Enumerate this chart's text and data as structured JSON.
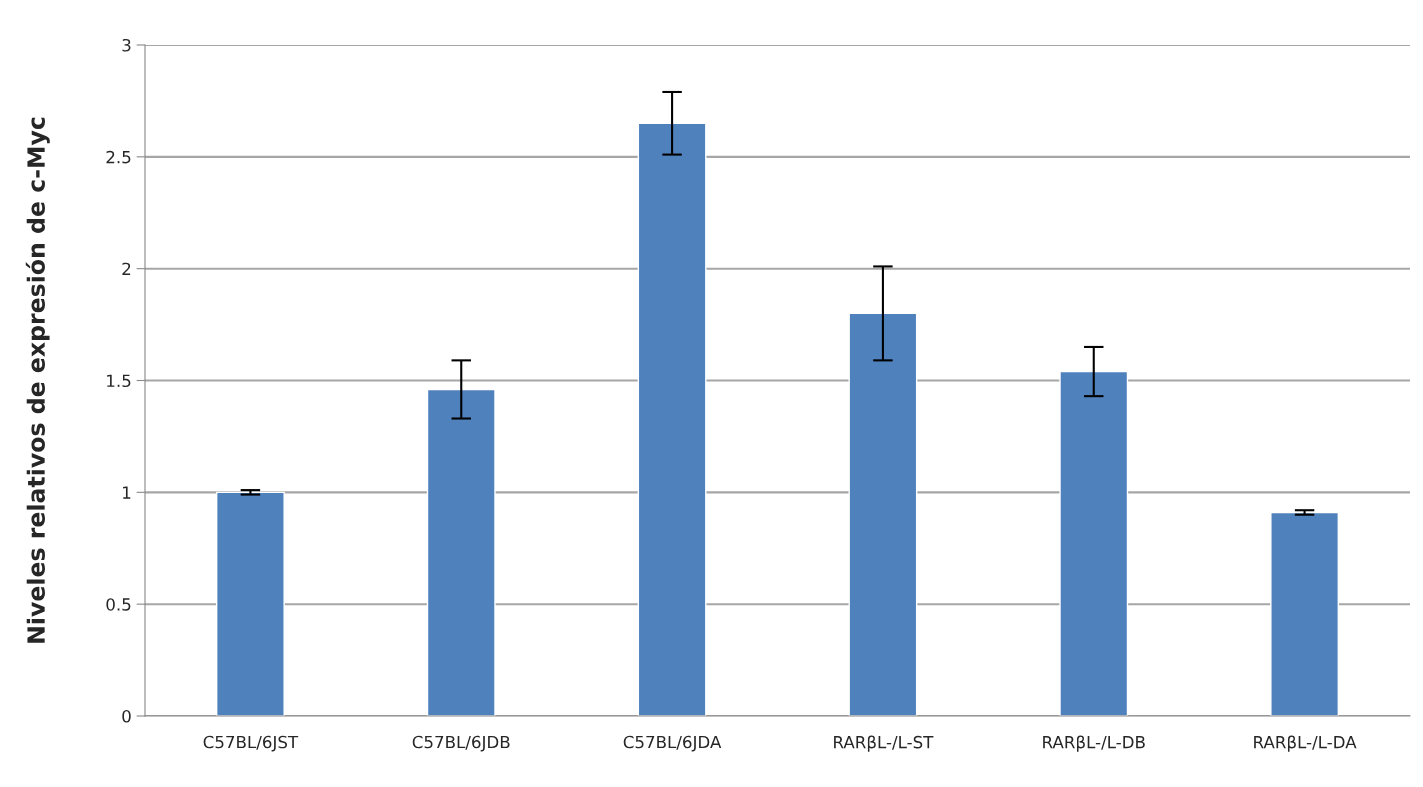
{
  "chart_data": {
    "type": "bar",
    "ylabel": "Niveles relativos de expresión de c-Myc",
    "categories": [
      "C57BL/6JST",
      "C57BL/6JDB",
      "C57BL/6JDA",
      "RARβL-/L-ST",
      "RARβL-/L-DB",
      "RARβL-/L-DA"
    ],
    "values": [
      1.0,
      1.46,
      2.65,
      1.8,
      1.54,
      0.91
    ],
    "errors": [
      0.01,
      0.13,
      0.14,
      0.21,
      0.11,
      0.01
    ],
    "color": "#4f81bd",
    "ylim": [
      0,
      3
    ],
    "yticks": [
      0,
      0.5,
      1,
      1.5,
      2,
      2.5,
      3
    ],
    "grid": "y"
  }
}
